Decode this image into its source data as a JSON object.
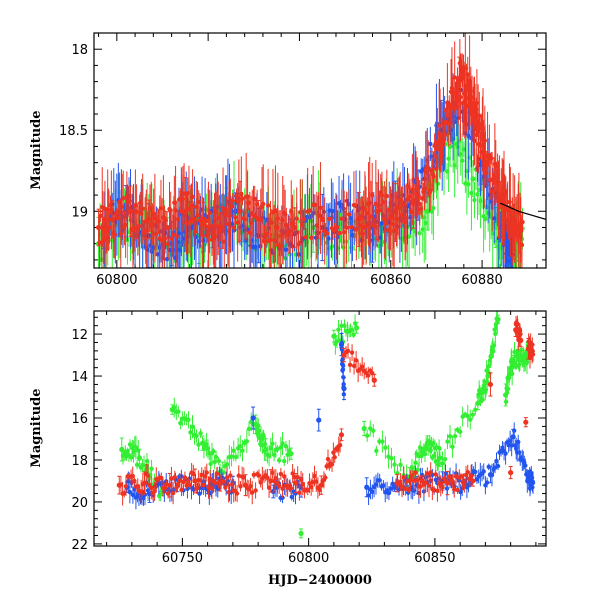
{
  "chart_data": [
    {
      "type": "scatter",
      "title": "",
      "xlabel": "",
      "ylabel": "Magnitude",
      "xlim": [
        60795,
        60894
      ],
      "ylim": [
        19.35,
        17.9
      ],
      "y_inverted": true,
      "x_ticks": [
        60800,
        60820,
        60840,
        60860,
        60880
      ],
      "y_ticks": [
        18,
        18.5,
        19
      ],
      "colors": {
        "red": "#ee3322",
        "blue": "#2255ee",
        "green": "#33ee33",
        "black": "#000000"
      },
      "series": [
        {
          "color": "green",
          "description_values": "dense light curve with large error bars",
          "x": [
            60796,
            60801,
            60806,
            60811,
            60818,
            60824,
            60829,
            60836,
            60843,
            60852,
            60857,
            60863,
            60868,
            60873,
            60878,
            60883,
            60887
          ],
          "y": [
            19.2,
            19.05,
            19.1,
            19.2,
            19.15,
            19.0,
            19.1,
            19.2,
            19.1,
            19.15,
            19.1,
            19.05,
            19.0,
            18.6,
            18.8,
            19.1,
            19.2
          ]
        },
        {
          "color": "blue",
          "x": [
            60797,
            60802,
            60807,
            60812,
            60816,
            60821,
            60826,
            60831,
            60838,
            60845,
            60850,
            60856,
            60861,
            60866,
            60871,
            60875,
            60880,
            60885
          ],
          "y": [
            19.1,
            19.0,
            19.15,
            19.2,
            19.05,
            19.1,
            19.0,
            19.15,
            19.2,
            19.1,
            19.05,
            19.1,
            19.0,
            18.9,
            18.5,
            18.3,
            18.7,
            19.2
          ]
        },
        {
          "color": "red",
          "x": [
            60796,
            60799,
            60803,
            60807,
            60811,
            60815,
            60819,
            60823,
            60827,
            60831,
            60835,
            60839,
            60845,
            60853,
            60857,
            60861,
            60865,
            60869,
            60872,
            60875,
            60877,
            60879,
            60881,
            60884,
            60887
          ],
          "y": [
            19.1,
            19.05,
            19.0,
            19.05,
            19.1,
            19.0,
            19.05,
            19.1,
            19.0,
            19.05,
            19.1,
            19.1,
            19.05,
            19.05,
            19.0,
            19.0,
            18.95,
            18.75,
            18.45,
            18.2,
            18.25,
            18.45,
            18.7,
            18.9,
            19.1
          ]
        },
        {
          "color": "black",
          "type": "line",
          "x": [
            60884,
            60888,
            60894
          ],
          "y": [
            18.95,
            19.0,
            19.05
          ]
        }
      ]
    },
    {
      "type": "scatter",
      "title": "",
      "xlabel": "HJD−2400000",
      "ylabel": "Magnitude",
      "xlim": [
        60715,
        60894
      ],
      "ylim": [
        22.1,
        10.9
      ],
      "y_inverted": true,
      "x_ticks": [
        60750,
        60800,
        60850
      ],
      "y_ticks": [
        12,
        14,
        16,
        18,
        20,
        22
      ],
      "colors": {
        "red": "#ee3322",
        "blue": "#2255ee",
        "green": "#33ee33"
      },
      "series": [
        {
          "color": "green",
          "x": [
            60726,
            60733,
            60742,
            60746,
            60758,
            60766,
            60779,
            60783,
            60793,
            60797,
            60810,
            60819,
            60822,
            60840,
            60847,
            60852,
            60867,
            60871,
            60875,
            60878,
            60881,
            60885
          ],
          "y": [
            17.5,
            17.9,
            19.5,
            15.6,
            17.2,
            18.6,
            16.3,
            17.5,
            17.7,
            21.5,
            12.1,
            11.7,
            16.5,
            18.8,
            17.2,
            17.9,
            15.3,
            14.0,
            11.3,
            14.9,
            13.3,
            13.1
          ]
        },
        {
          "color": "blue",
          "x": [
            60728,
            60737,
            60748,
            60760,
            60770,
            60778,
            60786,
            60797,
            60804,
            60813,
            60814,
            60823,
            60834,
            60843,
            60853,
            60862,
            60872,
            60881,
            60887
          ],
          "y": [
            19.3,
            19.6,
            19.2,
            19.4,
            19.1,
            16.0,
            19.5,
            19.3,
            16.1,
            12.5,
            14.6,
            19.3,
            19.3,
            19.2,
            19.0,
            19.1,
            18.7,
            16.9,
            18.9
          ]
        },
        {
          "color": "red",
          "x": [
            60725,
            60735,
            60745,
            60755,
            60765,
            60775,
            60785,
            60795,
            60805,
            60813,
            60814,
            60826,
            60835,
            60845,
            60855,
            60865,
            60872,
            60880,
            60882,
            60884,
            60886,
            60887
          ],
          "y": [
            19.2,
            19.1,
            19.2,
            19.0,
            19.1,
            19.2,
            19.0,
            19.1,
            19.2,
            16.8,
            13.0,
            14.2,
            19.1,
            19.0,
            19.1,
            19.0,
            14.4,
            18.6,
            11.8,
            12.3,
            16.2,
            12.7
          ]
        }
      ]
    }
  ]
}
